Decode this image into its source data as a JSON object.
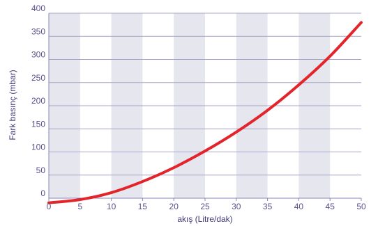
{
  "chart_data": {
    "type": "line",
    "title": "",
    "xlabel": "akış (Litre/dak)",
    "ylabel": "Fark basınç (mbar)",
    "xlim": [
      0,
      50
    ],
    "ylim": [
      0,
      400
    ],
    "x_ticks": [
      "0",
      "5",
      "10",
      "15",
      "20",
      "25",
      "30",
      "35",
      "40",
      "45",
      "50"
    ],
    "y_ticks": [
      "0",
      "50",
      "100",
      "150",
      "200",
      "250",
      "300",
      "350",
      "400"
    ],
    "grid": true,
    "shaded_bands": [
      [
        0,
        5
      ],
      [
        10,
        15
      ],
      [
        20,
        25
      ],
      [
        30,
        35
      ],
      [
        40,
        45
      ]
    ],
    "series": [
      {
        "x": [
          0,
          5,
          10,
          15,
          20,
          25,
          30,
          35,
          40,
          45,
          50
        ],
        "y": [
          -10,
          -3,
          12,
          36,
          66,
          102,
          143,
          190,
          245,
          307,
          380
        ]
      }
    ],
    "colors": {
      "line": "#e3242b",
      "band": "#e6e6ef",
      "grid": "#a8a3c8",
      "axis": "#8a84b8",
      "text": "#5a4f8c"
    }
  }
}
